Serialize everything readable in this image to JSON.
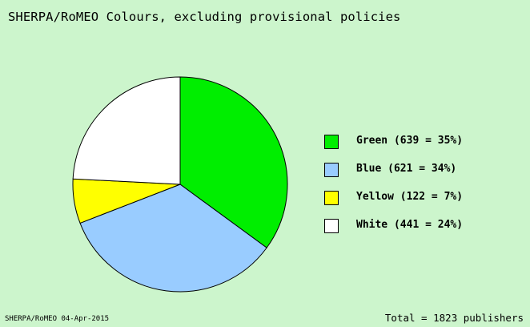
{
  "chart_data": {
    "type": "pie",
    "title": "SHERPA/RoMEO Colours, excluding provisional policies",
    "slices": [
      {
        "name": "Green",
        "count": 639,
        "percent": 35,
        "color": "#00ee00",
        "label": "Green (639 = 35%)"
      },
      {
        "name": "Blue",
        "count": 621,
        "percent": 34,
        "color": "#99ccff",
        "label": "Blue (621 = 34%)"
      },
      {
        "name": "Yellow",
        "count": 122,
        "percent": 7,
        "color": "#ffff00",
        "label": "Yellow (122 = 7%)"
      },
      {
        "name": "White",
        "count": 441,
        "percent": 24,
        "color": "#ffffff",
        "label": "White (441 = 24%)"
      }
    ],
    "legend_position": "right",
    "total_text": "Total = 1823 publishers",
    "source_text": "SHERPA/RoMEO 04-Apr-2015"
  }
}
